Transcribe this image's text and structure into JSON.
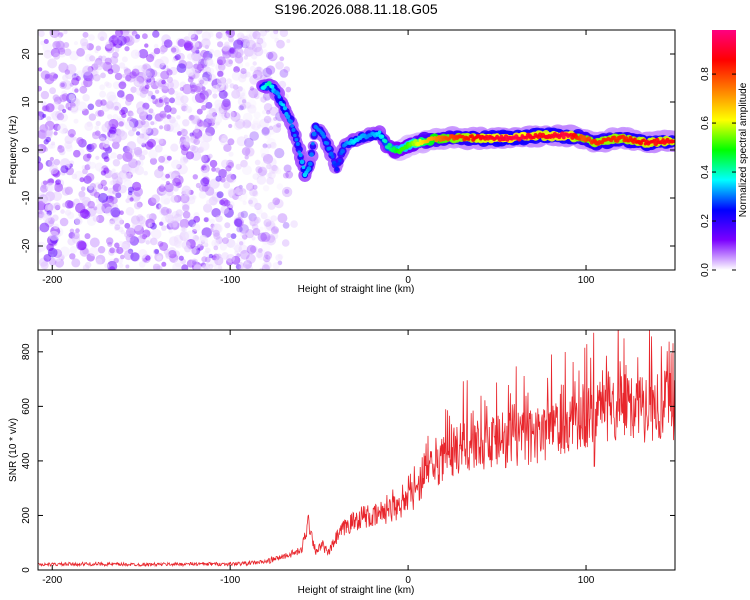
{
  "figure": {
    "title": "S196.2026.088.11.18.G05"
  },
  "chart_data": [
    {
      "type": "heatmap",
      "title": "S196.2026.088.11.18.G05",
      "xlabel": "Height of straight line (km)",
      "ylabel": "Frequency (Hz)",
      "xlim": [
        -208,
        150
      ],
      "ylim": [
        -25,
        25
      ],
      "xticks": [
        -200,
        -100,
        0,
        100
      ],
      "yticks": [
        20,
        10,
        0,
        -10,
        -20
      ],
      "grid": false,
      "colorbar": {
        "label": "Normalized spectral amplitude",
        "range": [
          0,
          0.98
        ],
        "ticks": [
          0.0,
          0.2,
          0.4,
          0.6,
          0.8
        ],
        "colormap": [
          "#ffffff",
          "#7b00ff",
          "#0000ff",
          "#00ffff",
          "#00ff00",
          "#ffff00",
          "#ff7f00",
          "#ff0000",
          "#ff0080"
        ]
      },
      "noise_region": {
        "x": [
          -208,
          -70
        ],
        "y": [
          -25,
          25
        ],
        "typical_amplitude": 0.1
      },
      "signal_track": [
        {
          "x": -82,
          "freq": 13,
          "amp": 0.35
        },
        {
          "x": -78,
          "freq": 13.5,
          "amp": 0.4
        },
        {
          "x": -74,
          "freq": 12,
          "amp": 0.3
        },
        {
          "x": -70,
          "freq": 9,
          "amp": 0.35
        },
        {
          "x": -66,
          "freq": 6,
          "amp": 0.3
        },
        {
          "x": -62,
          "freq": 1,
          "amp": 0.3
        },
        {
          "x": -58,
          "freq": -5,
          "amp": 0.35
        },
        {
          "x": -55,
          "freq": -3,
          "amp": 0.3
        },
        {
          "x": -52,
          "freq": 5,
          "amp": 0.3
        },
        {
          "x": -48,
          "freq": 3,
          "amp": 0.3
        },
        {
          "x": -44,
          "freq": 0,
          "amp": 0.3
        },
        {
          "x": -40,
          "freq": -4,
          "amp": 0.25
        },
        {
          "x": -36,
          "freq": 1,
          "amp": 0.3
        },
        {
          "x": -30,
          "freq": 2,
          "amp": 0.35
        },
        {
          "x": -22,
          "freq": 3,
          "amp": 0.3
        },
        {
          "x": -16,
          "freq": 3.5,
          "amp": 0.35
        },
        {
          "x": -12,
          "freq": 1,
          "amp": 0.4
        },
        {
          "x": -8,
          "freq": 0,
          "amp": 0.45
        },
        {
          "x": -4,
          "freq": 0,
          "amp": 0.5
        },
        {
          "x": 0,
          "freq": 1,
          "amp": 0.5
        },
        {
          "x": 10,
          "freq": 2,
          "amp": 0.65
        },
        {
          "x": 20,
          "freq": 2.5,
          "amp": 0.75
        },
        {
          "x": 40,
          "freq": 2.5,
          "amp": 0.85
        },
        {
          "x": 60,
          "freq": 2.5,
          "amp": 0.9
        },
        {
          "x": 75,
          "freq": 3,
          "amp": 0.85
        },
        {
          "x": 90,
          "freq": 3,
          "amp": 0.9
        },
        {
          "x": 98,
          "freq": 2.5,
          "amp": 0.75
        },
        {
          "x": 105,
          "freq": 1.5,
          "amp": 0.8
        },
        {
          "x": 120,
          "freq": 2.5,
          "amp": 0.8
        },
        {
          "x": 135,
          "freq": 1.5,
          "amp": 0.85
        },
        {
          "x": 150,
          "freq": 2,
          "amp": 0.85
        }
      ]
    },
    {
      "type": "line",
      "xlabel": "Height of straight line (km)",
      "ylabel": "SNR (10 * v/v)",
      "xlim": [
        -208,
        150
      ],
      "ylim": [
        0,
        880
      ],
      "xticks": [
        -200,
        -100,
        0,
        100
      ],
      "yticks": [
        0,
        200,
        400,
        600,
        800
      ],
      "grid": false,
      "series": [
        {
          "name": "SNR",
          "color": "#e8262c",
          "x": [
            -208,
            -180,
            -150,
            -120,
            -100,
            -90,
            -80,
            -75,
            -70,
            -65,
            -60,
            -56,
            -52,
            -48,
            -45,
            -40,
            -35,
            -30,
            -25,
            -20,
            -15,
            -10,
            -5,
            0,
            5,
            10,
            20,
            30,
            40,
            50,
            60,
            70,
            80,
            90,
            96,
            100,
            104,
            108,
            115,
            125,
            135,
            150
          ],
          "y": [
            20,
            22,
            20,
            22,
            22,
            25,
            30,
            40,
            50,
            60,
            70,
            180,
            70,
            90,
            60,
            120,
            160,
            180,
            200,
            190,
            210,
            220,
            240,
            250,
            300,
            360,
            410,
            450,
            460,
            470,
            480,
            490,
            520,
            540,
            560,
            560,
            560,
            580,
            600,
            590,
            600,
            600
          ]
        }
      ]
    }
  ]
}
